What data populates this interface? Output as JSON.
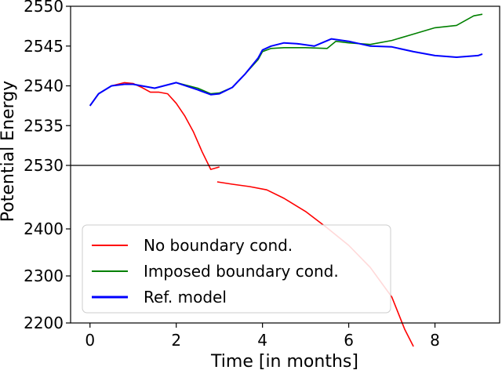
{
  "chart_data": {
    "type": "line",
    "title": "",
    "xlabel": "Time [in months]",
    "ylabel": "Potential Energy",
    "xlim": [
      -0.45,
      9.5
    ],
    "x_ticks": [
      0,
      2,
      4,
      6,
      8
    ],
    "upper_panel": {
      "ylim": [
        2530,
        2550
      ],
      "y_ticks": [
        2530,
        2535,
        2540,
        2545,
        2550
      ]
    },
    "lower_panel": {
      "ylim": [
        2200,
        2500
      ],
      "y_ticks": [
        2200,
        2300,
        2400
      ]
    },
    "grid": false,
    "legend_position": "lower-left",
    "series": [
      {
        "name": "No boundary cond.",
        "color": "#ff0000",
        "panel": "upper",
        "x": [
          0,
          0.2,
          0.5,
          0.8,
          1.0,
          1.2,
          1.4,
          1.6,
          1.8,
          2.0,
          2.2,
          2.4,
          2.6,
          2.8,
          3.0
        ],
        "y": [
          2537.5,
          2539.0,
          2540.0,
          2540.4,
          2540.3,
          2539.8,
          2539.2,
          2539.2,
          2539.0,
          2537.8,
          2536.2,
          2534.2,
          2531.7,
          2529.5,
          2529.8
        ]
      },
      {
        "name": "No boundary cond.",
        "color": "#ff0000",
        "panel": "lower",
        "x": [
          2.95,
          3.3,
          3.7,
          4.1,
          4.5,
          5.0,
          5.5,
          6.0,
          6.5,
          7.0,
          7.3,
          7.5
        ],
        "y": [
          2500,
          2495,
          2490,
          2483,
          2465,
          2437,
          2402,
          2365,
          2318,
          2255,
          2186,
          2150
        ]
      },
      {
        "name": "Imposed boundary cond.",
        "color": "#008000",
        "panel": "upper",
        "x": [
          0,
          0.2,
          0.5,
          0.8,
          1.0,
          1.5,
          2.0,
          2.5,
          2.8,
          3.0,
          3.3,
          3.6,
          3.9,
          4.0,
          4.2,
          4.5,
          5.0,
          5.5,
          5.7,
          6.0,
          6.5,
          7.0,
          7.5,
          8.0,
          8.5,
          8.9,
          9.1
        ],
        "y": [
          2537.5,
          2539.0,
          2540.0,
          2540.2,
          2540.2,
          2539.7,
          2540.4,
          2539.7,
          2539.0,
          2539.1,
          2539.8,
          2541.5,
          2543.3,
          2544.3,
          2544.7,
          2544.8,
          2544.8,
          2544.7,
          2545.6,
          2545.4,
          2545.2,
          2545.7,
          2546.5,
          2547.3,
          2547.6,
          2548.8,
          2549.0
        ]
      },
      {
        "name": "Ref. model",
        "color": "#0000ff",
        "panel": "upper",
        "x": [
          0,
          0.2,
          0.5,
          0.8,
          1.0,
          1.5,
          2.0,
          2.5,
          2.8,
          3.0,
          3.3,
          3.6,
          3.9,
          4.0,
          4.2,
          4.5,
          4.8,
          5.2,
          5.6,
          6.0,
          6.5,
          7.0,
          7.5,
          8.0,
          8.5,
          9.0,
          9.1
        ],
        "y": [
          2537.5,
          2539.0,
          2540.0,
          2540.2,
          2540.2,
          2539.7,
          2540.4,
          2539.5,
          2538.9,
          2539.0,
          2539.8,
          2541.5,
          2543.5,
          2544.5,
          2545.0,
          2545.4,
          2545.3,
          2545.0,
          2545.9,
          2545.6,
          2545.0,
          2544.9,
          2544.3,
          2543.8,
          2543.6,
          2543.8,
          2544.0
        ]
      }
    ],
    "legend_entries": [
      {
        "label": "No boundary cond.",
        "color": "#ff0000"
      },
      {
        "label": "Imposed boundary cond.",
        "color": "#008000"
      },
      {
        "label": "Ref. model",
        "color": "#0000ff"
      }
    ]
  }
}
